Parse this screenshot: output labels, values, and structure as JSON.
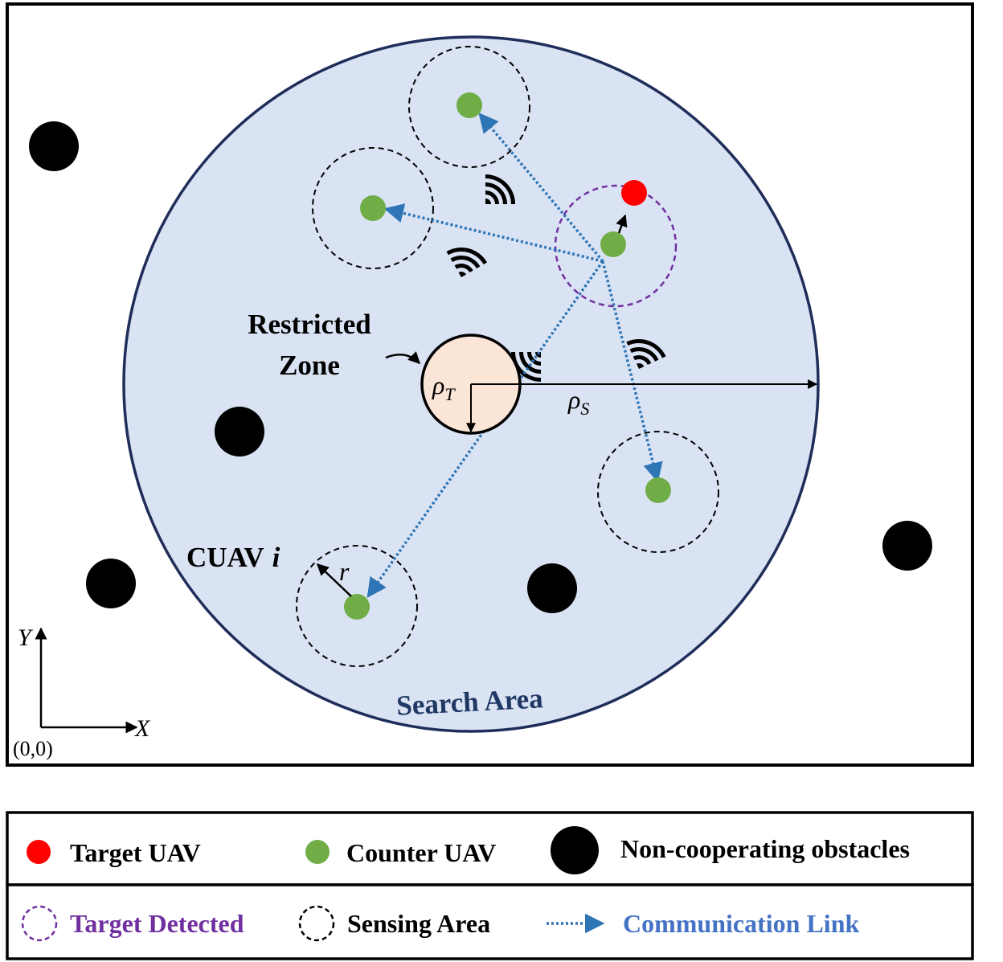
{
  "diagram": {
    "restricted_zone_label_line1": "Restricted",
    "restricted_zone_label_line2": "Zone",
    "search_area_label": "Search Area",
    "cuav_label": "CUAV",
    "cuav_index": "i",
    "rho_t_symbol": "ρ",
    "rho_t_sub": "T",
    "rho_s_symbol": "ρ",
    "rho_s_sub": "S",
    "sensing_radius_label": "r",
    "y_axis_label": "Y",
    "x_axis_label": "X",
    "origin_label": "(0,0)"
  },
  "legend": {
    "target_uav": "Target UAV",
    "counter_uav": "Counter UAV",
    "obstacles": "Non-cooperating obstacles",
    "target_detected": "Target Detected",
    "sensing_area": "Sensing Area",
    "communication_link": "Communication Link"
  },
  "colors": {
    "search_area_fill": "#dae3f3",
    "search_area_stroke": "#1f2d5a",
    "search_area_text": "#1f3864",
    "restricted_fill": "#fbe5d6",
    "counter_uav": "#70ad47",
    "target_uav": "#ff0000",
    "obstacle": "#000000",
    "target_detected": "#7030a0",
    "link": "#2e75b6",
    "link_text": "#4472c4"
  }
}
